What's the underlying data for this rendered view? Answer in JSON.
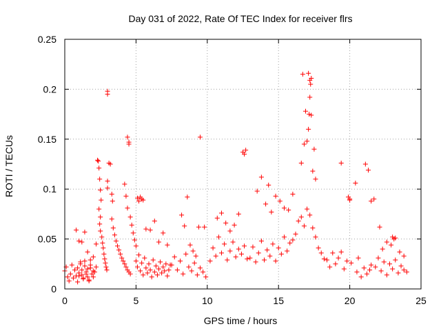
{
  "chart_data": {
    "type": "scatter",
    "title": "Day 031 of 2022, Rate Of TEC Index for receiver flrs",
    "xlabel": "GPS time / hours",
    "ylabel": "ROTI / TECUs",
    "xlim": [
      0,
      25
    ],
    "ylim": [
      0,
      0.25
    ],
    "x_ticks": [
      0,
      5,
      10,
      15,
      20,
      25
    ],
    "y_ticks": [
      0,
      0.05,
      0.1,
      0.15,
      0.2,
      0.25
    ],
    "y_tick_labels": [
      "0",
      "0.05",
      "0.1",
      "0.15",
      "0.2",
      "0.25"
    ],
    "grid": true,
    "legend": "none",
    "marker": "plus",
    "color": "#ff0000",
    "series": [
      {
        "x": [
          0.0,
          0.1,
          0.2,
          0.3,
          0.4,
          0.5,
          0.6,
          0.7,
          0.8,
          0.9,
          1.0,
          1.1,
          1.2,
          1.3,
          1.4,
          1.5,
          1.6,
          1.7,
          1.8,
          1.9,
          2.0,
          0.9,
          1.0,
          1.1,
          1.2,
          1.3,
          1.4,
          1.5,
          1.6,
          1.7,
          1.8,
          2.0,
          2.1,
          2.2,
          0.8,
          1.0,
          1.2,
          1.4,
          1.6,
          1.8,
          2.0,
          2.2,
          2.3,
          2.35,
          2.4,
          2.45,
          2.5,
          2.55,
          2.4,
          2.5,
          2.45,
          2.5,
          2.6,
          2.65,
          2.7,
          2.75,
          2.8,
          2.85,
          2.9,
          2.95,
          3.0,
          3.0,
          3.0,
          3.0,
          3.1,
          3.2,
          3.3,
          3.4,
          3.5,
          3.6,
          3.7,
          3.8,
          3.9,
          4.0,
          4.1,
          4.2,
          4.3,
          4.4,
          4.5,
          4.6,
          3.3,
          3.35,
          4.2,
          4.3,
          4.4,
          4.5,
          4.4,
          4.5,
          4.6,
          4.7,
          4.8,
          4.9,
          5.0,
          5.1,
          5.2,
          5.3,
          5.4,
          5.5,
          5.0,
          5.1,
          5.2,
          5.3,
          5.4,
          5.5,
          5.6,
          5.7,
          5.8,
          5.9,
          6.0,
          6.1,
          6.2,
          6.3,
          6.4,
          6.5,
          6.6,
          6.7,
          6.8,
          6.9,
          7.0,
          7.1,
          7.2,
          7.3,
          7.4,
          5.7,
          6.0,
          6.3,
          6.6,
          6.9,
          7.2,
          7.5,
          7.7,
          7.9,
          8.1,
          8.3,
          8.5,
          8.7,
          8.9,
          9.1,
          9.3,
          9.5,
          9.7,
          9.9,
          8.2,
          8.4,
          8.6,
          8.8,
          9.0,
          9.2,
          9.4,
          9.5,
          9.8,
          10.2,
          10.4,
          10.6,
          10.8,
          11.0,
          11.2,
          11.4,
          11.6,
          11.8,
          12.0,
          12.2,
          12.4,
          12.6,
          12.8,
          10.7,
          11.0,
          11.3,
          11.6,
          11.9,
          12.2,
          12.5,
          12.6,
          12.7,
          13.0,
          13.2,
          13.4,
          13.6,
          13.8,
          14.0,
          14.2,
          14.4,
          14.6,
          14.8,
          15.0,
          15.2,
          15.4,
          15.6,
          15.8,
          16.0,
          13.5,
          13.8,
          14.1,
          14.3,
          14.5,
          14.8,
          15.1,
          15.4,
          15.7,
          16.0,
          16.2,
          16.4,
          16.6,
          16.8,
          17.0,
          17.2,
          17.4,
          17.6,
          17.8,
          18.0,
          18.2,
          16.6,
          16.8,
          17.0,
          17.1,
          17.15,
          17.2,
          17.25,
          17.3,
          17.5,
          16.7,
          16.9,
          17.1,
          17.2,
          17.3,
          17.4,
          17.6,
          18.4,
          18.6,
          18.8,
          19.0,
          19.2,
          19.4,
          19.6,
          19.8,
          19.4,
          19.9,
          20.0,
          20.0,
          20.1,
          20.4,
          20.6,
          20.5,
          20.8,
          21.0,
          21.2,
          21.4,
          21.5,
          21.1,
          21.3,
          21.5,
          21.7,
          21.8,
          22.0,
          22.2,
          22.4,
          22.6,
          22.8,
          23.0,
          23.2,
          23.4,
          23.6,
          23.8,
          24.0,
          22.3,
          22.6,
          22.9,
          23.2,
          23.5,
          23.8,
          22.1,
          23.0,
          23.1
        ],
        "y": [
          0.018,
          0.022,
          0.012,
          0.008,
          0.015,
          0.024,
          0.011,
          0.019,
          0.013,
          0.021,
          0.016,
          0.027,
          0.014,
          0.01,
          0.023,
          0.017,
          0.012,
          0.009,
          0.021,
          0.015,
          0.018,
          0.007,
          0.013,
          0.025,
          0.019,
          0.011,
          0.028,
          0.015,
          0.02,
          0.008,
          0.024,
          0.012,
          0.017,
          0.022,
          0.059,
          0.048,
          0.047,
          0.057,
          0.037,
          0.029,
          0.032,
          0.045,
          0.129,
          0.128,
          0.121,
          0.11,
          0.099,
          0.089,
          0.08,
          0.072,
          0.065,
          0.058,
          0.052,
          0.046,
          0.041,
          0.035,
          0.03,
          0.026,
          0.022,
          0.019,
          0.198,
          0.195,
          0.108,
          0.101,
          0.126,
          0.125,
          0.07,
          0.061,
          0.054,
          0.048,
          0.043,
          0.039,
          0.035,
          0.031,
          0.028,
          0.025,
          0.022,
          0.019,
          0.017,
          0.015,
          0.095,
          0.088,
          0.105,
          0.093,
          0.081,
          0.147,
          0.152,
          0.145,
          0.072,
          0.064,
          0.056,
          0.049,
          0.043,
          0.091,
          0.088,
          0.092,
          0.09,
          0.089,
          0.028,
          0.022,
          0.034,
          0.018,
          0.026,
          0.014,
          0.031,
          0.021,
          0.016,
          0.025,
          0.019,
          0.012,
          0.029,
          0.017,
          0.023,
          0.014,
          0.02,
          0.027,
          0.016,
          0.022,
          0.018,
          0.025,
          0.013,
          0.019,
          0.024,
          0.06,
          0.059,
          0.068,
          0.047,
          0.056,
          0.044,
          0.024,
          0.032,
          0.019,
          0.028,
          0.015,
          0.035,
          0.022,
          0.018,
          0.026,
          0.014,
          0.021,
          0.017,
          0.012,
          0.074,
          0.063,
          0.092,
          0.044,
          0.038,
          0.033,
          0.062,
          0.152,
          0.062,
          0.028,
          0.041,
          0.033,
          0.052,
          0.036,
          0.045,
          0.029,
          0.038,
          0.047,
          0.032,
          0.04,
          0.035,
          0.043,
          0.03,
          0.071,
          0.076,
          0.066,
          0.058,
          0.064,
          0.075,
          0.137,
          0.135,
          0.139,
          0.031,
          0.042,
          0.027,
          0.036,
          0.048,
          0.029,
          0.039,
          0.033,
          0.045,
          0.028,
          0.041,
          0.035,
          0.052,
          0.038,
          0.046,
          0.049,
          0.098,
          0.112,
          0.085,
          0.104,
          0.077,
          0.093,
          0.088,
          0.081,
          0.079,
          0.095,
          0.055,
          0.068,
          0.072,
          0.063,
          0.08,
          0.074,
          0.061,
          0.052,
          0.041,
          0.036,
          0.03,
          0.126,
          0.145,
          0.148,
          0.16,
          0.175,
          0.192,
          0.205,
          0.211,
          0.14,
          0.215,
          0.178,
          0.216,
          0.209,
          0.174,
          0.118,
          0.11,
          0.029,
          0.022,
          0.036,
          0.025,
          0.031,
          0.037,
          0.02,
          0.028,
          0.126,
          0.092,
          0.089,
          0.09,
          0.026,
          0.106,
          0.031,
          0.017,
          0.012,
          0.021,
          0.015,
          0.019,
          0.024,
          0.125,
          0.119,
          0.088,
          0.09,
          0.022,
          0.031,
          0.018,
          0.027,
          0.014,
          0.025,
          0.02,
          0.029,
          0.016,
          0.023,
          0.019,
          0.017,
          0.04,
          0.047,
          0.044,
          0.051,
          0.037,
          0.033,
          0.062,
          0.052,
          0.05
        ]
      }
    ]
  }
}
